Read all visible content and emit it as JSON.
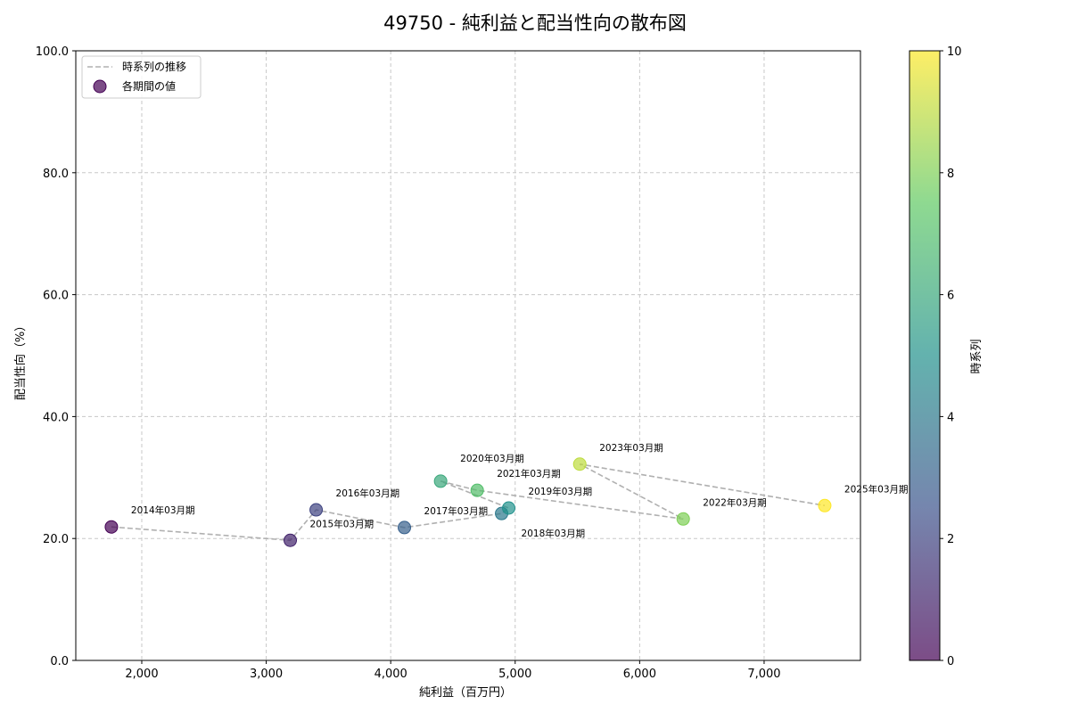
{
  "chart_data": {
    "type": "scatter",
    "title": "49750 - 純利益と配当性向の散布図",
    "xlabel": "純利益（百万円）",
    "ylabel": "配当性向（%）",
    "xlim": [
      1470,
      7774
    ],
    "ylim": [
      0,
      100
    ],
    "xticks": [
      2000,
      3000,
      4000,
      5000,
      6000,
      7000
    ],
    "xtick_labels": [
      "2,000",
      "3,000",
      "4,000",
      "5,000",
      "6,000",
      "7,000"
    ],
    "yticks": [
      0,
      20,
      40,
      60,
      80,
      100
    ],
    "ytick_labels": [
      "0.0",
      "20.0",
      "40.0",
      "60.0",
      "80.0",
      "100.0"
    ],
    "grid": true,
    "legend": {
      "position": "top-left",
      "entries": [
        "時系列の推移",
        "各期間の値"
      ]
    },
    "colorbar": {
      "label": "時系列",
      "range": [
        0,
        10
      ],
      "ticks": [
        "0",
        "2",
        "4",
        "6",
        "8",
        "10"
      ],
      "colormap": "viridis"
    },
    "points": [
      {
        "label": "2014年03月期",
        "x": 1756,
        "y": 21.9,
        "t": 0
      },
      {
        "label": "2015年03月期",
        "x": 3193,
        "y": 19.7,
        "t": 1
      },
      {
        "label": "2016年03月期",
        "x": 3401,
        "y": 24.7,
        "t": 2
      },
      {
        "label": "2017年03月期",
        "x": 4110,
        "y": 21.8,
        "t": 3
      },
      {
        "label": "2018年03月期",
        "x": 4891,
        "y": 24.1,
        "t": 4
      },
      {
        "label": "2019年03月期",
        "x": 4948,
        "y": 25.0,
        "t": 5
      },
      {
        "label": "2020年03月期",
        "x": 4401,
        "y": 29.4,
        "t": 6
      },
      {
        "label": "2021年03月期",
        "x": 4695,
        "y": 27.9,
        "t": 7
      },
      {
        "label": "2022年03月期",
        "x": 6350,
        "y": 23.2,
        "t": 8
      },
      {
        "label": "2023年03月期",
        "x": 5519,
        "y": 32.2,
        "t": 9
      },
      {
        "label": "2025年03月期",
        "x": 7487,
        "y": 25.4,
        "t": 10
      }
    ]
  }
}
